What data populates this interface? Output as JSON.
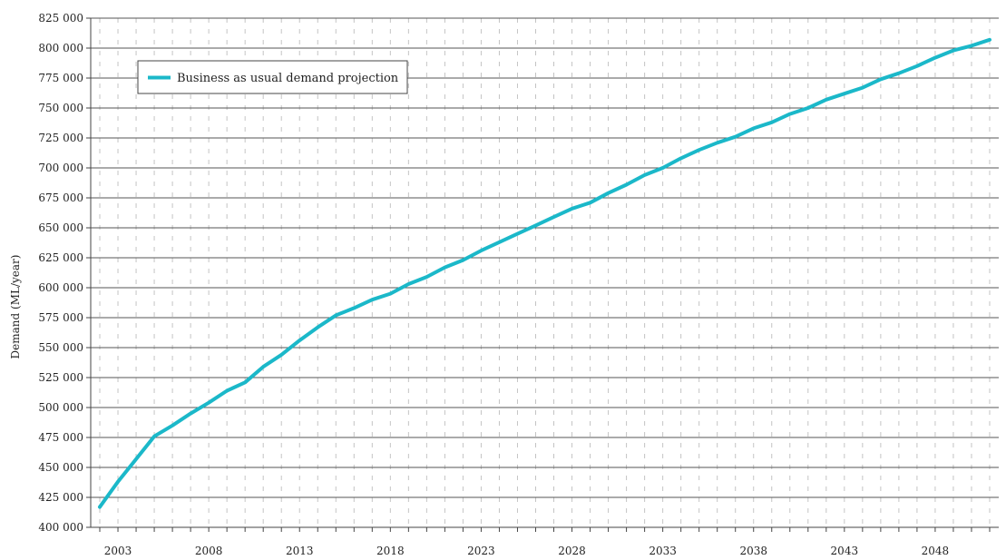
{
  "chart_data": {
    "type": "line",
    "title": "",
    "xlabel": "",
    "ylabel": "Demand (ML/year)",
    "xlim": [
      2001.5,
      2051.5
    ],
    "ylim": [
      400000,
      825000
    ],
    "y_ticks": [
      400000,
      425000,
      450000,
      475000,
      500000,
      525000,
      550000,
      575000,
      600000,
      625000,
      650000,
      675000,
      700000,
      725000,
      750000,
      775000,
      800000,
      825000
    ],
    "y_tick_labels": [
      "400 000",
      "425 000",
      "450 000",
      "475 000",
      "500 000",
      "525 000",
      "550 000",
      "575 000",
      "600 000",
      "625 000",
      "650 000",
      "675 000",
      "700 000",
      "725 000",
      "750 000",
      "775 000",
      "800 000",
      "825 000"
    ],
    "x_tick_labels": [
      "2003",
      "2008",
      "2013",
      "2018",
      "2023",
      "2028",
      "2033",
      "2038",
      "2043",
      "2048"
    ],
    "x_tick_values": [
      2003,
      2008,
      2013,
      2018,
      2023,
      2028,
      2033,
      2038,
      2043,
      2048
    ],
    "grid": {
      "horizontal": "solid",
      "vertical": "dashed"
    },
    "legend_position": "top-left",
    "series": [
      {
        "name": "Business as usual demand projection",
        "color": "#1bb8c9",
        "x": [
          2002,
          2003,
          2004,
          2005,
          2006,
          2007,
          2008,
          2009,
          2010,
          2011,
          2012,
          2013,
          2014,
          2015,
          2016,
          2017,
          2018,
          2019,
          2020,
          2021,
          2022,
          2023,
          2024,
          2025,
          2026,
          2027,
          2028,
          2029,
          2030,
          2031,
          2032,
          2033,
          2034,
          2035,
          2036,
          2037,
          2038,
          2039,
          2040,
          2041,
          2042,
          2043,
          2044,
          2045,
          2046,
          2047,
          2048,
          2049,
          2050,
          2051
        ],
        "values": [
          417000,
          438000,
          457000,
          476000,
          485000,
          495000,
          504000,
          514000,
          521000,
          534000,
          544000,
          556000,
          567000,
          577000,
          583000,
          590000,
          595000,
          603000,
          609000,
          617000,
          623000,
          631000,
          638000,
          645000,
          652000,
          659000,
          666000,
          671000,
          679000,
          686000,
          694000,
          700000,
          708000,
          715000,
          721000,
          726000,
          733000,
          738000,
          745000,
          750000,
          757000,
          762000,
          767000,
          774000,
          779000,
          785000,
          792000,
          798000,
          802000,
          807000
        ]
      }
    ]
  }
}
